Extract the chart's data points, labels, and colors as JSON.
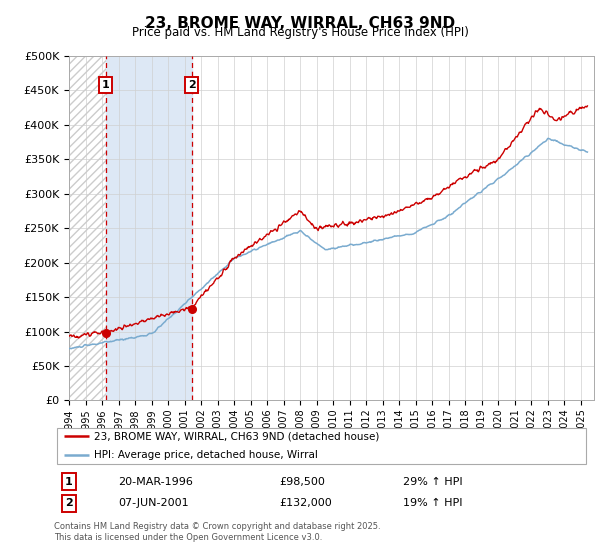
{
  "title": "23, BROME WAY, WIRRAL, CH63 9ND",
  "subtitle": "Price paid vs. HM Land Registry's House Price Index (HPI)",
  "legend_line1": "23, BROME WAY, WIRRAL, CH63 9ND (detached house)",
  "legend_line2": "HPI: Average price, detached house, Wirral",
  "sale1_date": "20-MAR-1996",
  "sale1_price": 98500,
  "sale1_pct": "29% ↑ HPI",
  "sale2_date": "07-JUN-2001",
  "sale2_price": 132000,
  "sale2_pct": "19% ↑ HPI",
  "footer": "Contains HM Land Registry data © Crown copyright and database right 2025.\nThis data is licensed under the Open Government Licence v3.0.",
  "line_color_red": "#cc0000",
  "line_color_blue": "#7aabcf",
  "hatch_color": "#cccccc",
  "span_color": "#dde8f5",
  "ylim_min": 0,
  "ylim_max": 500000,
  "xmin": 1994.0,
  "xmax": 2025.8,
  "sale1_year": 1996.22,
  "sale2_year": 2001.43
}
